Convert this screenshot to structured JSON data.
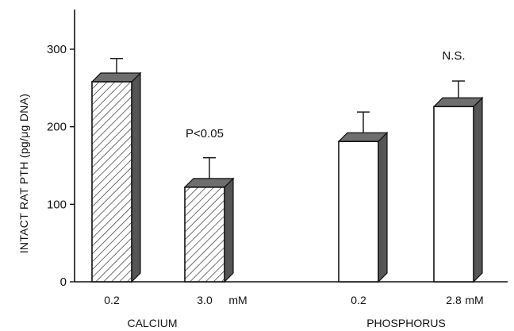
{
  "chart_data": {
    "type": "bar",
    "title": "",
    "ylabel": "INTACT RAT PTH (pg/μg DNA)",
    "ylim": [
      0,
      350
    ],
    "yticks": [
      0,
      100,
      200,
      300
    ],
    "grid": false,
    "bars": [
      {
        "category": "0.2",
        "group": "CALCIUM",
        "value": 258,
        "error": 30,
        "fill": "hatched"
      },
      {
        "category": "3.0",
        "group": "CALCIUM",
        "value": 122,
        "error": 38,
        "fill": "hatched"
      },
      {
        "category": "0.2",
        "group": "PHOSPHORUS",
        "value": 181,
        "error": 38,
        "fill": "white"
      },
      {
        "category": "2.8",
        "group": "PHOSPHORUS",
        "value": 226,
        "error": 33,
        "fill": "white"
      }
    ],
    "unit_labels": [
      {
        "text": "mM",
        "after_bar": 1
      },
      {
        "text": "mM",
        "after_bar": 3
      }
    ],
    "groups": [
      "CALCIUM",
      "PHOSPHORUS"
    ],
    "annotations": [
      {
        "text": "P<0.05",
        "group": "CALCIUM"
      },
      {
        "text": "N.S.",
        "group": "PHOSPHORUS"
      }
    ],
    "colors": {
      "bar_outline": "#111111",
      "bar_side": "#555555",
      "bar_top": "#6e6e6e",
      "hatch": "#333333"
    }
  }
}
